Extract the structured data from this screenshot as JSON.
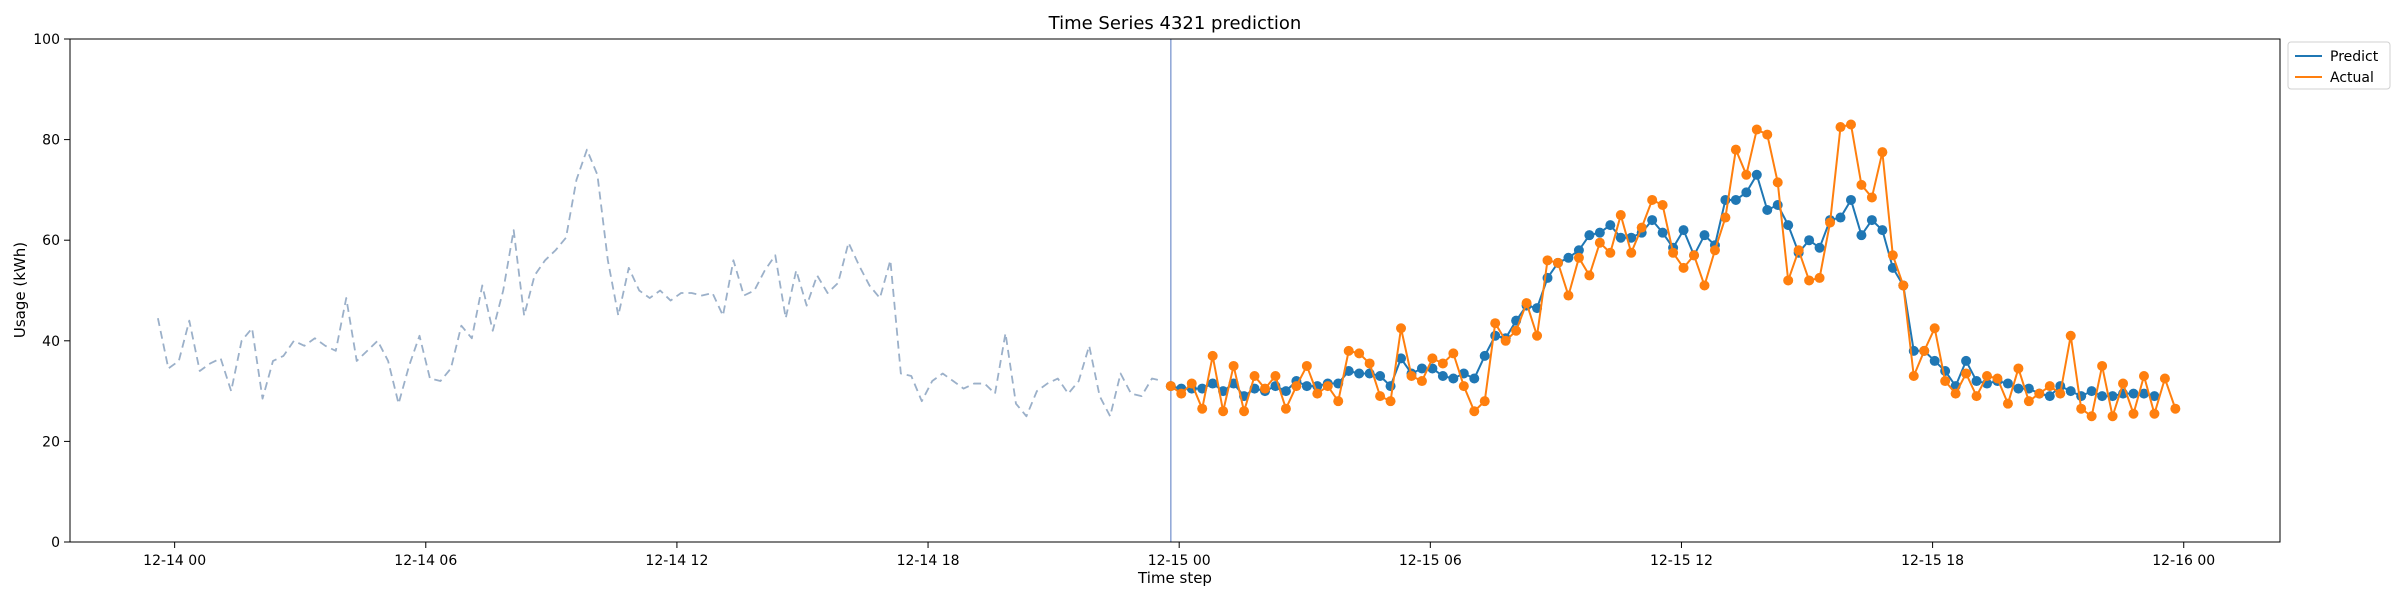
{
  "chart_data": {
    "type": "line",
    "title": "Time Series 4321 prediction",
    "xlabel": "Time step",
    "ylabel": "Usage (kWh)",
    "ylim": [
      0,
      100
    ],
    "yticks": [
      0,
      20,
      40,
      60,
      80,
      100
    ],
    "xticks": [
      "12-14 00",
      "12-14 06",
      "12-14 12",
      "12-14 18",
      "12-15 00",
      "12-15 06",
      "12-15 12",
      "12-15 18",
      "12-16 00"
    ],
    "xlim_hours": [
      -2.5,
      50.3
    ],
    "forecast_start_hour": 23.8,
    "grid": false,
    "legend_position": "upper-right-outside",
    "series": [
      {
        "name": "",
        "style": "dashed",
        "color": "#9bb0c9",
        "start_hour": -0.4,
        "step_hours": 0.25,
        "values": [
          44.5,
          34.5,
          36,
          44,
          34,
          35.5,
          36.5,
          30,
          40,
          42.5,
          28.5,
          36,
          37,
          40,
          39,
          40.5,
          39,
          38,
          48.5,
          36,
          38,
          40,
          36,
          27.5,
          35,
          41,
          32.5,
          32,
          34.5,
          43,
          40.5,
          51,
          42,
          50,
          62,
          45,
          53,
          56,
          58,
          60.5,
          72,
          78,
          73,
          56,
          45,
          54.5,
          50,
          48.5,
          50,
          48,
          49.5,
          49.5,
          49,
          49.5,
          45,
          56,
          49,
          50,
          54,
          57,
          44.5,
          54,
          47,
          53,
          49.5,
          51.5,
          59.5,
          55,
          51,
          48.5,
          56,
          33.5,
          33,
          28,
          32,
          33.5,
          32,
          30.5,
          31.5,
          31.5,
          29.5,
          41.5,
          27.5,
          25,
          30,
          31.5,
          32.5,
          29.5,
          32,
          39,
          29,
          25,
          33.5,
          29.5,
          29,
          32.5,
          32
        ]
      },
      {
        "name": "Predict",
        "style": "solid-markers",
        "color": "#1f77b4",
        "start_hour": 23.8,
        "step_hours": 0.25,
        "values": [
          31,
          30.5,
          30.5,
          30.5,
          31.5,
          30,
          31.5,
          29,
          30.5,
          30,
          31,
          30,
          32,
          31,
          31,
          31.5,
          31.5,
          34,
          33.5,
          33.5,
          33,
          31,
          36.5,
          33.5,
          34.5,
          34.5,
          33,
          32.5,
          33.5,
          32.5,
          37,
          41,
          40.5,
          44,
          47,
          46.5,
          52.5,
          55.5,
          56.5,
          58,
          61,
          61.5,
          63,
          60.5,
          60.5,
          61.5,
          64,
          61.5,
          58.5,
          62,
          57,
          61,
          59,
          68,
          68,
          69.5,
          73,
          66,
          67,
          63,
          57.5,
          60,
          58.5,
          64,
          64.5,
          68,
          61,
          64,
          62,
          54.5,
          51,
          38,
          38,
          36,
          34,
          31,
          36,
          32,
          31.5,
          32,
          31.5,
          30.5,
          30.5,
          29.5,
          29,
          31,
          30,
          29,
          30,
          29,
          29,
          29.5,
          29.5,
          29.5,
          29
        ]
      },
      {
        "name": "Actual",
        "style": "solid-markers",
        "color": "#ff7f0e",
        "start_hour": 23.8,
        "step_hours": 0.25,
        "values": [
          31,
          29.5,
          31.5,
          26.5,
          37,
          26,
          35,
          26,
          33,
          30.5,
          33,
          26.5,
          31,
          35,
          29.5,
          31,
          28,
          38,
          37.5,
          35.5,
          29,
          28,
          42.5,
          33,
          32,
          36.5,
          35.5,
          37.5,
          31,
          26,
          28,
          43.5,
          40,
          42,
          47.5,
          41,
          56,
          55.5,
          49,
          56.5,
          53,
          59.5,
          57.5,
          65,
          57.5,
          62.5,
          68,
          67,
          57.5,
          54.5,
          57,
          51,
          58,
          64.5,
          78,
          73,
          82,
          81,
          71.5,
          52,
          58,
          52,
          52.5,
          63.5,
          82.5,
          83,
          71,
          68.5,
          77.5,
          57,
          51,
          33,
          38,
          42.5,
          32,
          29.5,
          33.5,
          29,
          33,
          32.5,
          27.5,
          34.5,
          28,
          29.5,
          31,
          29.5,
          41,
          26.5,
          25,
          35,
          25,
          31.5,
          25.5,
          33,
          25.5,
          32.5,
          26.5
        ]
      }
    ]
  }
}
